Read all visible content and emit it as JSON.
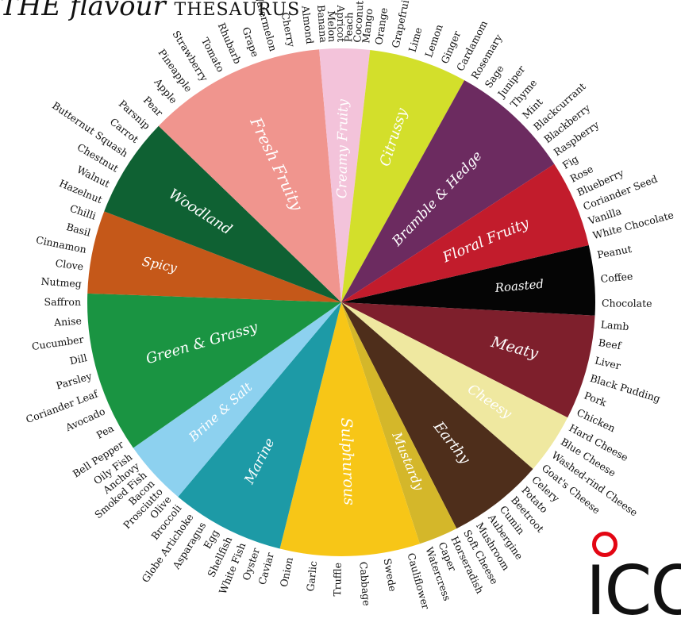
{
  "title": {
    "main": "THE flavour",
    "sub": "THESAURUS"
  },
  "logo": {
    "text": "ICO"
  },
  "colors": {
    "ring": "#e30613"
  },
  "categories": [
    {
      "name": "Roasted",
      "color": "#050505",
      "ingredients": [
        "Peanut",
        "Coffee",
        "Chocolate"
      ]
    },
    {
      "name": "Meaty",
      "color": "#7e1f2c",
      "ingredients": [
        "Lamb",
        "Beef",
        "Liver",
        "Black Pudding",
        "Pork",
        "Chicken"
      ]
    },
    {
      "name": "Cheesy",
      "color": "#efe8a0",
      "ingredients": [
        "Hard Cheese",
        "Blue Cheese",
        "Washed-rind Cheese",
        "Goat's Cheese"
      ]
    },
    {
      "name": "Earthy",
      "color": "#4e2e1b",
      "ingredients": [
        "Celery",
        "Potato",
        "Beetroot",
        "Cumin",
        "Aubergine",
        "Mushroom",
        "Soft Cheese"
      ]
    },
    {
      "name": "Mustardy",
      "color": "#d4b72a",
      "ingredients": [
        "Horseradish",
        "Caper",
        "Watercress"
      ]
    },
    {
      "name": "Sulphurous",
      "color": "#f7c617",
      "ingredients": [
        "Cauliflower",
        "Swede",
        "Cabbage",
        "Truffle",
        "Garlic",
        "Onion"
      ]
    },
    {
      "name": "Marine",
      "color": "#1d9aa6",
      "ingredients": [
        "Caviar",
        "Oyster",
        "White Fish",
        "Shellfish",
        "Egg",
        "Asparagus",
        "Globe Artichoke",
        "Broccoli"
      ]
    },
    {
      "name": "Brine & Salt",
      "color": "#8dd1ef",
      "ingredients": [
        "Olive",
        "Prosciutto",
        "Bacon",
        "Smoked Fish",
        "Anchovy",
        "Oily Fish"
      ]
    },
    {
      "name": "Green & Grassy",
      "color": "#1a9442",
      "ingredients": [
        "Bell Pepper",
        "Pea",
        "Avocado",
        "Coriander Leaf",
        "Parsley",
        "Dill",
        "Cucumber",
        "Anise",
        "Saffron"
      ]
    },
    {
      "name": "Spicy",
      "color": "#c55819",
      "ingredients": [
        "Nutmeg",
        "Clove",
        "Cinnamon",
        "Basil",
        "Chilli"
      ]
    },
    {
      "name": "Woodland",
      "color": "#0f6133",
      "ingredients": [
        "Hazelnut",
        "Walnut",
        "Chestnut",
        "Butternut Squash",
        "Carrot",
        "Parsnip"
      ]
    },
    {
      "name": "Fresh Fruity",
      "color": "#f0958e",
      "ingredients": [
        "Pear",
        "Apple",
        "Pineapple",
        "Strawberry",
        "Tomato",
        "Rhubarb",
        "Grape",
        "Watermelon",
        "Cherry",
        "Almond"
      ]
    },
    {
      "name": "Creamy Fruity",
      "color": "#f3c3da",
      "ingredients": [
        "Banana",
        "Melon",
        "Apricot",
        "Peach",
        "Coconut",
        "Mango"
      ]
    },
    {
      "name": "Citrussy",
      "color": "#d3df2b",
      "ingredients": [
        "Orange",
        "Grapefruit",
        "Lime",
        "Lemon",
        "Ginger",
        "Cardamom"
      ]
    },
    {
      "name": "Bramble & Hedge",
      "color": "#6c2b60",
      "ingredients": [
        "Rosemary",
        "Sage",
        "Juniper",
        "Thyme",
        "Mint",
        "Blackcurrant",
        "Blackberry",
        "Raspberry"
      ]
    },
    {
      "name": "Floral Fruity",
      "color": "#c21c2c",
      "ingredients": [
        "Fig",
        "Rose",
        "Blueberry",
        "Coriander Seed",
        "Vanilla",
        "White Chocolate"
      ]
    }
  ]
}
